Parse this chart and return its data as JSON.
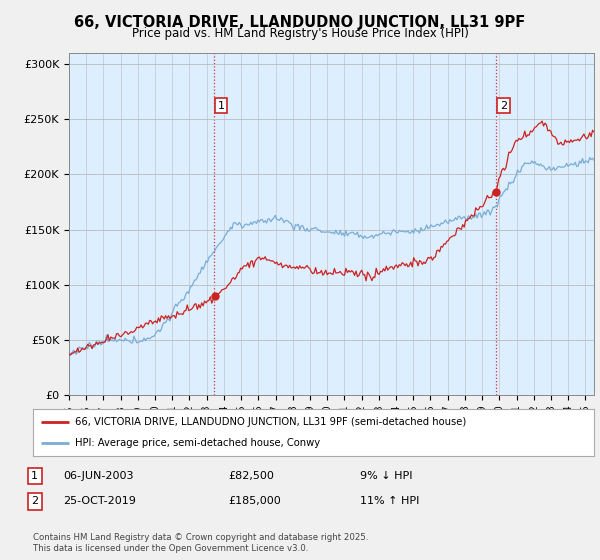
{
  "title": "66, VICTORIA DRIVE, LLANDUDNO JUNCTION, LL31 9PF",
  "subtitle": "Price paid vs. HM Land Registry's House Price Index (HPI)",
  "ylabel_ticks": [
    "£0",
    "£50K",
    "£100K",
    "£150K",
    "£200K",
    "£250K",
    "£300K"
  ],
  "ytick_values": [
    0,
    50000,
    100000,
    150000,
    200000,
    250000,
    300000
  ],
  "ylim": [
    0,
    310000
  ],
  "xlim_start": 1995.0,
  "xlim_end": 2025.5,
  "hpi_color": "#7aadd4",
  "price_color": "#cc2222",
  "vline_color": "#cc3333",
  "marker1_year": 2003.44,
  "marker2_year": 2019.82,
  "marker1_price": 82500,
  "marker2_price": 185000,
  "legend_label1": "66, VICTORIA DRIVE, LLANDUDNO JUNCTION, LL31 9PF (semi-detached house)",
  "legend_label2": "HPI: Average price, semi-detached house, Conwy",
  "note1_date": "06-JUN-2003",
  "note1_price": "£82,500",
  "note1_hpi": "9% ↓ HPI",
  "note2_date": "25-OCT-2019",
  "note2_price": "£185,000",
  "note2_hpi": "11% ↑ HPI",
  "footer": "Contains HM Land Registry data © Crown copyright and database right 2025.\nThis data is licensed under the Open Government Licence v3.0.",
  "background_color": "#f0f0f0",
  "plot_bg_color": "#ddeeff"
}
